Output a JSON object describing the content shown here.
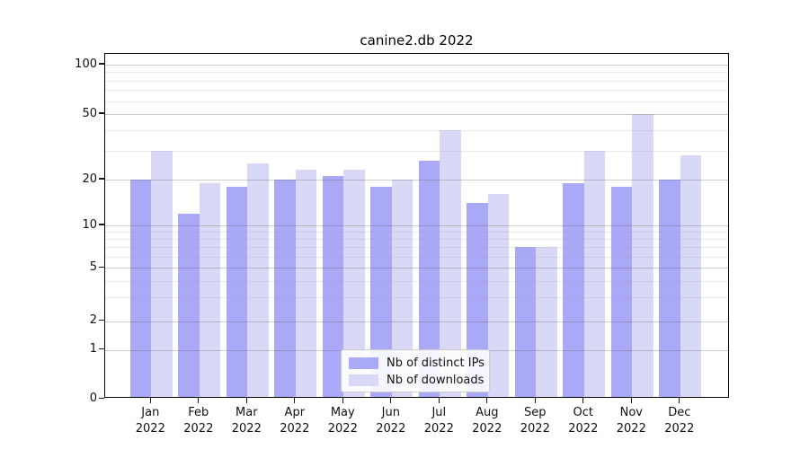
{
  "title": "canine2.db 2022",
  "chart_data": {
    "type": "bar",
    "title": "canine2.db 2022",
    "categories": [
      "Jan 2022",
      "Feb 2022",
      "Mar 2022",
      "Apr 2022",
      "May 2022",
      "Jun 2022",
      "Jul 2022",
      "Aug 2022",
      "Sep 2022",
      "Oct 2022",
      "Nov 2022",
      "Dec 2022"
    ],
    "x_tick_months": [
      "Jan",
      "Feb",
      "Mar",
      "Apr",
      "May",
      "Jun",
      "Jul",
      "Aug",
      "Sep",
      "Oct",
      "Nov",
      "Dec"
    ],
    "x_tick_year": "2022",
    "series": [
      {
        "name": "Nb of distinct IPs",
        "color": "#a9a9f8",
        "values": [
          20,
          12,
          18,
          20,
          21,
          18,
          26,
          14,
          7,
          19,
          18,
          20
        ]
      },
      {
        "name": "Nb of downloads",
        "color": "#d9d9f7",
        "values": [
          30,
          19,
          25,
          23,
          23,
          20,
          40,
          16,
          7,
          30,
          50,
          28
        ]
      }
    ],
    "yscale": "log-like (compressed near zero, 0 shown)",
    "y_major_ticks": [
      0,
      1,
      2,
      5,
      10,
      20,
      50,
      100
    ],
    "y_tick_labels": [
      "0",
      "1",
      "2",
      "5",
      "10",
      "20",
      "50",
      "100"
    ],
    "y_minor_gridlines": [
      3,
      4,
      6,
      7,
      8,
      9,
      30,
      40,
      60,
      70,
      80,
      90
    ],
    "ylim": [
      0,
      115
    ],
    "grid": true,
    "legend_position": "lower center",
    "axis_color": "#000000",
    "major_grid_color": "#cfcfcf",
    "minor_grid_color": "#ebebeb"
  },
  "legend": {
    "items": [
      {
        "label": "Nb of distinct IPs"
      },
      {
        "label": "Nb of downloads"
      }
    ]
  }
}
